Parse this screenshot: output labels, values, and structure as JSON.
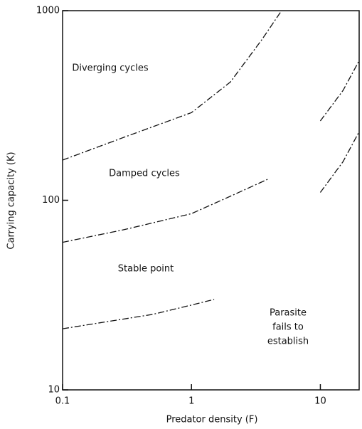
{
  "chart_data": {
    "type": "line",
    "x_label": "Predator density (F)",
    "y_label": "Carrying capacity (K)",
    "xscale": "log",
    "yscale": "log",
    "xlim": [
      0.1,
      20
    ],
    "ylim": [
      10,
      1000
    ],
    "xticks": [
      0.1,
      1,
      10
    ],
    "yticks": [
      10,
      100,
      1000
    ],
    "color": "#111111",
    "series": [
      {
        "x": [
          0.1,
          0.3,
          1,
          2,
          3.5,
          5
        ],
        "values": [
          163,
          215,
          290,
          420,
          700,
          1000
        ]
      },
      {
        "x": [
          0.1,
          0.3,
          1,
          2,
          4
        ],
        "values": [
          60,
          70,
          85,
          105,
          130
        ]
      },
      {
        "x": [
          10,
          15,
          20
        ],
        "values": [
          262,
          380,
          545
        ]
      },
      {
        "x": [
          10,
          15,
          20
        ],
        "values": [
          110,
          160,
          230
        ]
      },
      {
        "x": [
          0.1,
          0.5,
          1,
          1.5
        ],
        "values": [
          21,
          25,
          28,
          30
        ]
      }
    ],
    "annotations": [
      "Diverging cycles",
      "Damped cycles",
      "Stable point",
      "Parasite",
      "fails to",
      "establish"
    ]
  }
}
